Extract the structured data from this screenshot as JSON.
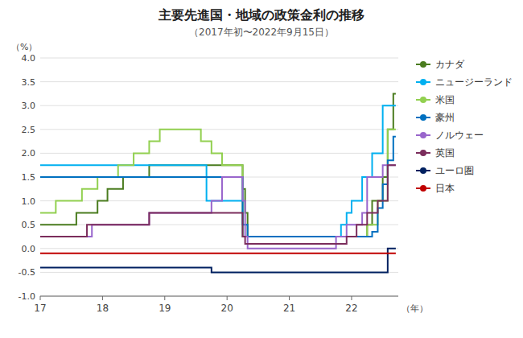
{
  "chart_data": {
    "type": "line",
    "title": "主要先進国・地域の政策金利の推移",
    "subtitle": "（2017年初〜2022年9月15日）",
    "ylabel": "（%）",
    "xlabel": "（年）",
    "xlim": [
      2017.0,
      2022.75
    ],
    "ylim": [
      -1.0,
      4.0
    ],
    "xticks": [
      {
        "value": 2017,
        "label": "17"
      },
      {
        "value": 2018,
        "label": "18"
      },
      {
        "value": 2019,
        "label": "19"
      },
      {
        "value": 2020,
        "label": "20"
      },
      {
        "value": 2021,
        "label": "21"
      },
      {
        "value": 2022,
        "label": "22"
      }
    ],
    "yticks": [
      {
        "value": -1.0,
        "label": "-1.0"
      },
      -0.5,
      {
        "value": 0.0,
        "label": "0.0"
      },
      0.5,
      {
        "value": 1.0,
        "label": "1.0"
      },
      1.5,
      {
        "value": 2.0,
        "label": "2.0"
      },
      2.5,
      {
        "value": 3.0,
        "label": "3.0"
      },
      3.5,
      {
        "value": 4.0,
        "label": "4.0"
      }
    ],
    "grid": true,
    "legend": "right",
    "series": [
      {
        "name": "カナダ",
        "color": "#4a7c1f",
        "x": [
          2017.0,
          2017.58,
          2017.58,
          2017.92,
          2017.92,
          2018.08,
          2018.08,
          2018.33,
          2018.33,
          2018.75,
          2018.75,
          2020.25,
          2020.25,
          2020.29,
          2020.29,
          2020.33,
          2020.33,
          2022.25,
          2022.25,
          2022.33,
          2022.33,
          2022.5,
          2022.5,
          2022.58,
          2022.58,
          2022.67,
          2022.67,
          2022.71
        ],
        "values": [
          0.5,
          0.5,
          0.75,
          0.75,
          1.0,
          1.0,
          1.25,
          1.25,
          1.5,
          1.5,
          1.75,
          1.75,
          1.25,
          1.25,
          0.75,
          0.75,
          0.25,
          0.25,
          0.5,
          0.5,
          1.0,
          1.0,
          1.5,
          1.5,
          2.5,
          2.5,
          3.25,
          3.25
        ]
      },
      {
        "name": "ニュージーランド",
        "color": "#00b0f0",
        "x": [
          2017.0,
          2019.67,
          2019.67,
          2020.25,
          2020.25,
          2021.83,
          2021.83,
          2021.92,
          2021.92,
          2022.0,
          2022.0,
          2022.17,
          2022.17,
          2022.33,
          2022.33,
          2022.5,
          2022.5,
          2022.71
        ],
        "values": [
          1.75,
          1.75,
          1.0,
          1.0,
          0.25,
          0.25,
          0.5,
          0.5,
          0.75,
          0.75,
          1.0,
          1.0,
          1.5,
          1.5,
          2.0,
          2.0,
          3.0,
          3.0
        ]
      },
      {
        "name": "米国",
        "color": "#92d050",
        "x": [
          2017.0,
          2017.25,
          2017.25,
          2017.67,
          2017.67,
          2017.92,
          2017.92,
          2018.25,
          2018.25,
          2018.5,
          2018.5,
          2018.75,
          2018.75,
          2018.92,
          2018.92,
          2019.58,
          2019.58,
          2019.75,
          2019.75,
          2019.92,
          2019.92,
          2020.25,
          2020.25,
          2022.25,
          2022.25,
          2022.42,
          2022.42,
          2022.58,
          2022.58,
          2022.71
        ],
        "values": [
          0.75,
          0.75,
          1.0,
          1.0,
          1.25,
          1.25,
          1.5,
          1.5,
          1.75,
          1.75,
          2.0,
          2.0,
          2.25,
          2.25,
          2.5,
          2.5,
          2.25,
          2.25,
          2.0,
          2.0,
          1.75,
          1.75,
          0.25,
          0.25,
          0.5,
          0.5,
          1.0,
          1.0,
          2.5,
          2.5
        ]
      },
      {
        "name": "豪州",
        "color": "#0070c0",
        "x": [
          2017.0,
          2020.25,
          2020.25,
          2020.33,
          2020.33,
          2022.33,
          2022.33,
          2022.42,
          2022.42,
          2022.5,
          2022.5,
          2022.58,
          2022.58,
          2022.67,
          2022.67,
          2022.71
        ],
        "values": [
          1.5,
          1.5,
          0.5,
          0.5,
          0.25,
          0.25,
          0.35,
          0.35,
          0.85,
          0.85,
          1.35,
          1.35,
          1.85,
          1.85,
          2.35,
          2.35
        ]
      },
      {
        "name": "ノルウェー",
        "color": "#9966cc",
        "x": [
          2017.0,
          2017.83,
          2017.83,
          2018.75,
          2018.75,
          2019.75,
          2019.75,
          2019.92,
          2019.92,
          2020.25,
          2020.25,
          2020.29,
          2020.29,
          2020.33,
          2020.33,
          2021.75,
          2021.75,
          2021.92,
          2021.92,
          2022.17,
          2022.17,
          2022.25,
          2022.25,
          2022.5,
          2022.5,
          2022.71
        ],
        "values": [
          0.25,
          0.25,
          0.5,
          0.5,
          0.75,
          0.75,
          1.0,
          1.0,
          1.5,
          1.5,
          1.0,
          1.0,
          0.25,
          0.25,
          0.0,
          0.0,
          0.25,
          0.25,
          0.5,
          0.5,
          0.75,
          0.75,
          1.5,
          1.5,
          1.75,
          1.75
        ]
      },
      {
        "name": "英国",
        "color": "#7b2d5c",
        "x": [
          2017.0,
          2017.75,
          2017.75,
          2018.75,
          2018.75,
          2020.25,
          2020.25,
          2020.29,
          2020.29,
          2021.92,
          2021.92,
          2022.08,
          2022.08,
          2022.25,
          2022.25,
          2022.42,
          2022.42,
          2022.58,
          2022.58,
          2022.71
        ],
        "values": [
          0.25,
          0.25,
          0.5,
          0.5,
          0.75,
          0.75,
          0.25,
          0.25,
          0.1,
          0.1,
          0.25,
          0.25,
          0.5,
          0.5,
          0.75,
          0.75,
          1.0,
          1.0,
          1.75,
          1.75
        ]
      },
      {
        "name": "ユーロ圏",
        "color": "#002060",
        "x": [
          2017.0,
          2019.75,
          2019.75,
          2022.58,
          2022.58,
          2022.71
        ],
        "values": [
          -0.4,
          -0.4,
          -0.5,
          -0.5,
          0.0,
          0.0
        ]
      },
      {
        "name": "日本",
        "color": "#c00000",
        "x": [
          2017.0,
          2022.71
        ],
        "values": [
          -0.1,
          -0.1
        ]
      }
    ]
  }
}
